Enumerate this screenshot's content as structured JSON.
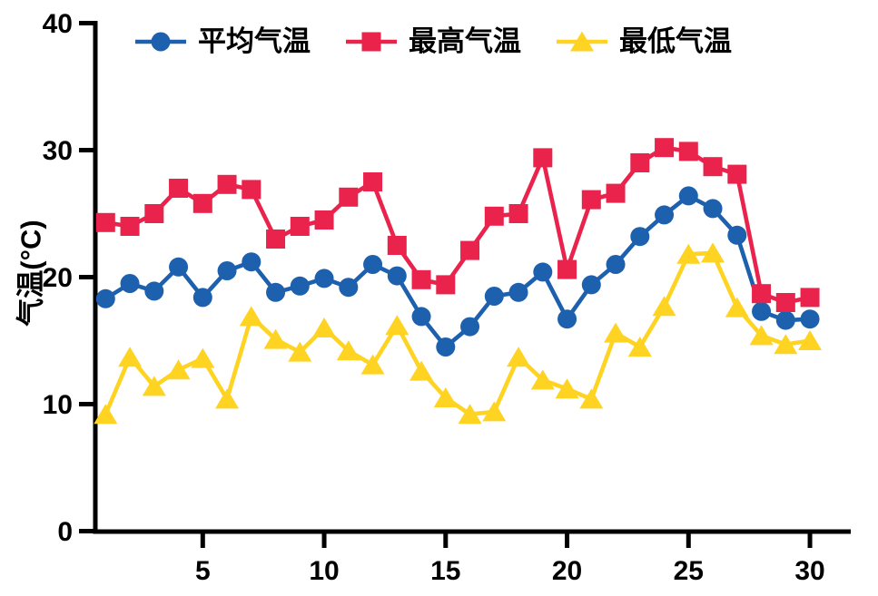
{
  "chart_data": {
    "type": "line",
    "title": "",
    "xlabel": "",
    "ylabel": "气温(°C)",
    "x_unit": "day",
    "x": [
      1,
      2,
      3,
      4,
      5,
      6,
      7,
      8,
      9,
      10,
      11,
      12,
      13,
      14,
      15,
      16,
      17,
      18,
      19,
      20,
      21,
      22,
      23,
      24,
      25,
      26,
      27,
      28,
      29,
      30
    ],
    "x_ticks": [
      5,
      10,
      15,
      20,
      25,
      30
    ],
    "y_ticks": [
      0,
      10,
      20,
      30,
      40
    ],
    "xlim": [
      0.6,
      31.7
    ],
    "ylim": [
      0,
      40
    ],
    "grid": false,
    "legend_position": "top-inside-horizontal",
    "axis_color": "#000000",
    "series": [
      {
        "name": "平均气温",
        "marker": "circle",
        "color": "#1c60ae",
        "values": [
          18.3,
          19.5,
          18.9,
          20.8,
          18.4,
          20.5,
          21.2,
          18.8,
          19.3,
          19.9,
          19.2,
          21.0,
          20.1,
          16.9,
          14.5,
          16.1,
          18.5,
          18.8,
          20.4,
          16.7,
          19.4,
          21.0,
          23.2,
          24.9,
          26.4,
          25.4,
          23.3,
          17.3,
          16.6,
          16.7
        ]
      },
      {
        "name": "最高气温",
        "marker": "square",
        "color": "#e9234b",
        "values": [
          24.3,
          24.0,
          25.0,
          27.0,
          25.8,
          27.3,
          26.9,
          23.0,
          24.0,
          24.5,
          26.3,
          27.5,
          22.5,
          19.8,
          19.4,
          22.1,
          24.8,
          25.0,
          29.4,
          20.6,
          26.1,
          26.6,
          29.0,
          30.2,
          29.9,
          28.7,
          28.1,
          18.7,
          18.0,
          18.4
        ]
      },
      {
        "name": "最低气温",
        "marker": "triangle",
        "color": "#fed322",
        "values": [
          9.2,
          13.7,
          11.4,
          12.7,
          13.6,
          10.4,
          16.9,
          15.1,
          14.1,
          16.0,
          14.2,
          13.1,
          16.2,
          12.6,
          10.5,
          9.2,
          9.4,
          13.7,
          11.9,
          11.2,
          10.4,
          15.6,
          14.5,
          17.7,
          21.8,
          21.9,
          17.6,
          15.4,
          14.7,
          15.0
        ]
      }
    ]
  }
}
